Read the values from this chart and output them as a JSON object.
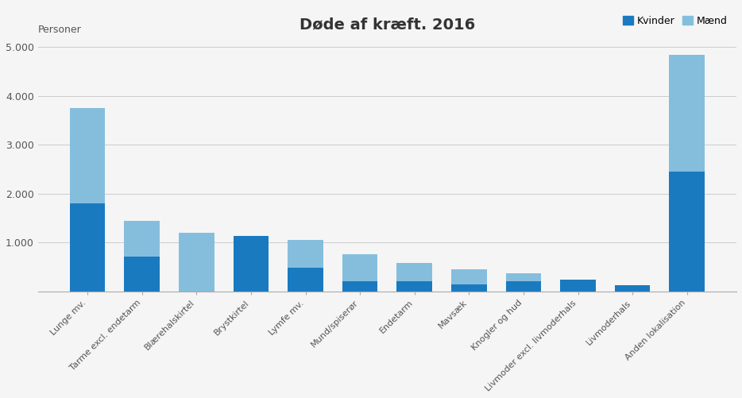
{
  "categories_display": [
    "Lunge mv.",
    "Tarme excl. endetarm",
    "Blærehalskirtel",
    "Brystkirtel",
    "Lymfe mv.",
    "Mund/spiserør",
    "Endetarm",
    "Mavsæk",
    "Knogler og hud",
    "Livmoder excl. livmoderhals",
    "Livmoderhals",
    "Anden lokalisation"
  ],
  "kvinder": [
    1800,
    720,
    0,
    1130,
    480,
    210,
    210,
    150,
    210,
    240,
    130,
    2450
  ],
  "maend": [
    1950,
    720,
    1200,
    0,
    580,
    560,
    370,
    300,
    160,
    0,
    0,
    2400
  ],
  "color_kvinder": "#1a7abf",
  "color_maend": "#85bedd",
  "title": "Døde af kræft. 2016",
  "ylabel": "Personer",
  "ylim": [
    0,
    5200
  ],
  "yticks": [
    0,
    1000,
    2000,
    3000,
    4000,
    5000
  ],
  "ytick_labels": [
    "",
    "1.000",
    "2.000",
    "3.000",
    "4.000",
    "5.000"
  ],
  "background_color": "#f5f5f5",
  "title_fontsize": 14,
  "legend_kvinder": "Kvinder",
  "legend_maend": "Mænd"
}
